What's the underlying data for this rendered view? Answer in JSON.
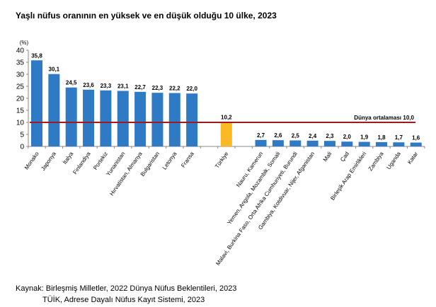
{
  "chart_data": {
    "type": "bar",
    "title": "Yaşlı nüfus oranının en yüksek ve en düşük olduğu 10 ülke, 2023",
    "ylabel": "(%)",
    "ylim": [
      0,
      40
    ],
    "yticks": [
      0,
      5,
      10,
      15,
      20,
      25,
      30,
      35,
      40
    ],
    "grid": false,
    "categories": [
      "Monako",
      "Japonya",
      "İtalya",
      "Finlandiya",
      "Portekiz",
      "Yunanistan",
      "Hırvatistan, Almanya",
      "Bulgaristan",
      "Letonya",
      "Fransa",
      "Türkiye",
      "Nauru, Kamerun",
      "Yemen, Angola, Mozambik, Somali",
      "Malavi, Burkina Faso, Orta Afrika Cumhuriyeti, Burundi",
      "Gambiya, Kotdivuar, Nijer, Afganistan",
      "Mali",
      "Çad",
      "Birleşik Arap Emirlikleri",
      "Zambiya",
      "Uganda",
      "Katar"
    ],
    "values": [
      35.8,
      30.1,
      24.5,
      23.6,
      23.3,
      23.1,
      22.7,
      22.3,
      22.2,
      22.0,
      10.2,
      2.7,
      2.6,
      2.5,
      2.4,
      2.3,
      2.0,
      1.9,
      1.8,
      1.7,
      1.6
    ],
    "value_labels": [
      "35,8",
      "30,1",
      "24,5",
      "23,6",
      "23,3",
      "23,1",
      "22,7",
      "22,3",
      "22,2",
      "22,0",
      "10,2",
      "2,7",
      "2,6",
      "2,5",
      "2,4",
      "2,3",
      "2,0",
      "1,9",
      "1,8",
      "1,7",
      "1,6"
    ],
    "colors": {
      "default": "#2f7ac4",
      "highlight": "#f9b924",
      "reference_line": "#a01820"
    },
    "highlight": "Türkiye",
    "reference_line": {
      "value": 10.0,
      "label": "Dünya ortalaması",
      "value_label": "10,0"
    }
  },
  "source": {
    "line1": "Kaynak: Birleşmiş Milletler, 2022 Dünya Nüfus Beklentileri, 2023",
    "line2": "TÜİK, Adrese Dayalı Nüfus Kayıt Sistemi, 2023"
  }
}
